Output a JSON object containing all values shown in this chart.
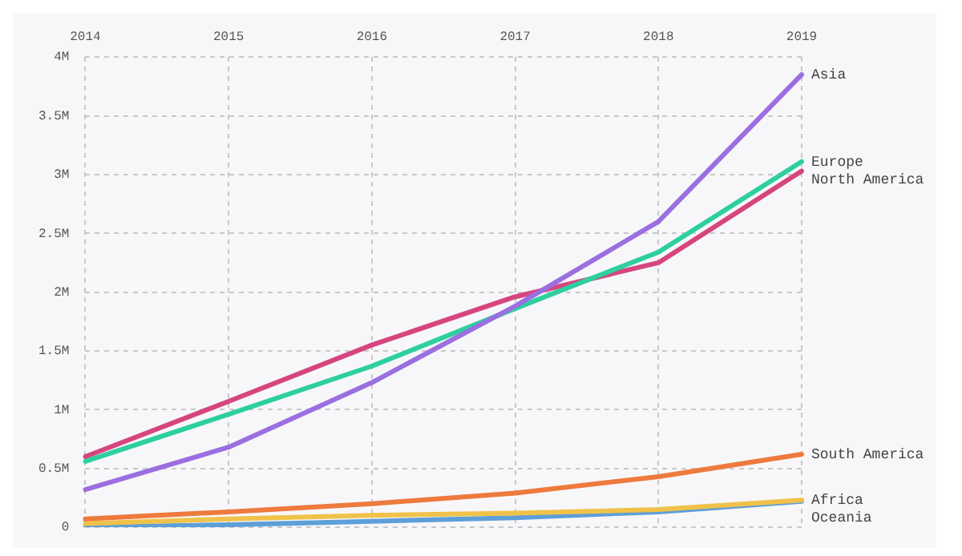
{
  "chart_data": {
    "type": "line",
    "categories": [
      "2014",
      "2015",
      "2016",
      "2017",
      "2018",
      "2019"
    ],
    "series": [
      {
        "name": "Asia",
        "color": "#9b6fe0",
        "values": [
          0.32,
          0.68,
          1.23,
          1.88,
          2.6,
          3.85
        ]
      },
      {
        "name": "Europe",
        "color": "#2ecf9f",
        "values": [
          0.56,
          0.96,
          1.37,
          1.86,
          2.34,
          3.11
        ]
      },
      {
        "name": "North America",
        "color": "#d6457f",
        "values": [
          0.6,
          1.07,
          1.55,
          1.96,
          2.25,
          3.03
        ]
      },
      {
        "name": "South America",
        "color": "#ee7a3e",
        "values": [
          0.07,
          0.13,
          0.2,
          0.29,
          0.43,
          0.62
        ]
      },
      {
        "name": "Africa",
        "color": "#f0c24a",
        "values": [
          0.03,
          0.07,
          0.1,
          0.12,
          0.15,
          0.23
        ]
      },
      {
        "name": "Oceania",
        "color": "#5d9fd8",
        "values": [
          0.0,
          0.02,
          0.05,
          0.08,
          0.13,
          0.22
        ]
      }
    ],
    "ylim": [
      0,
      4
    ],
    "yticks": [
      {
        "value": 0,
        "label": "0"
      },
      {
        "value": 0.5,
        "label": "0.5M"
      },
      {
        "value": 1,
        "label": "1M"
      },
      {
        "value": 1.5,
        "label": "1.5M"
      },
      {
        "value": 2,
        "label": "2M"
      },
      {
        "value": 2.5,
        "label": "2.5M"
      },
      {
        "value": 3,
        "label": "3M"
      },
      {
        "value": 3.5,
        "label": "3.5M"
      },
      {
        "value": 4,
        "label": "4M"
      }
    ],
    "grid": true,
    "legend": false,
    "marker": "none",
    "line_style": "solid"
  }
}
